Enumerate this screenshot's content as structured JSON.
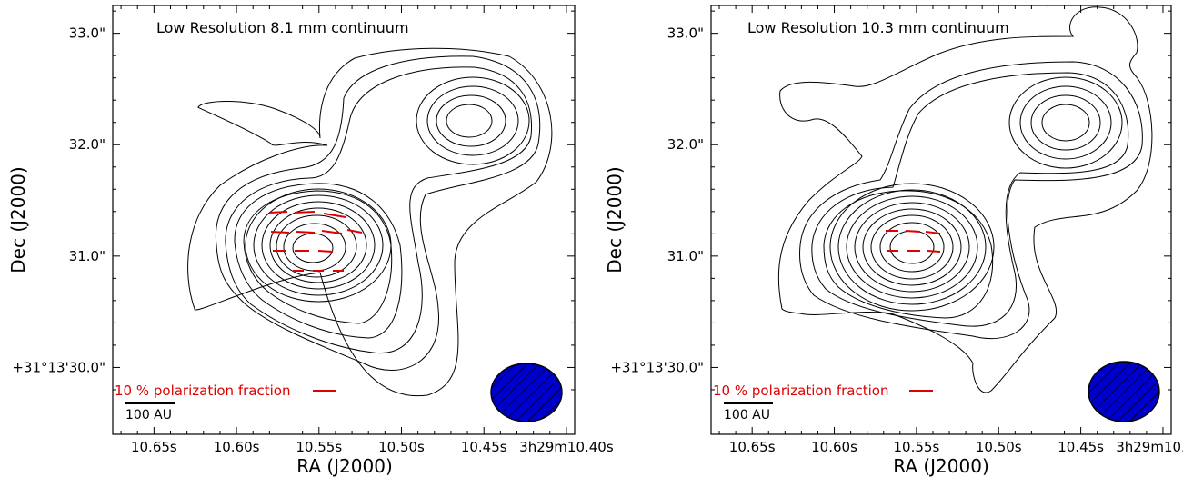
{
  "chart_data": [
    {
      "type": "contour",
      "title": "Low Resolution 8.1 mm continuum",
      "xlabel": "RA (J2000)",
      "ylabel": "Dec (J2000)",
      "x_ticks": [
        "10.65s",
        "10.60s",
        "10.55s",
        "10.50s",
        "10.45s",
        "3h29m10.40s"
      ],
      "x_tick_values_s": [
        10.65,
        10.6,
        10.55,
        10.5,
        10.45,
        10.4
      ],
      "y_ticks": [
        "33.0\"",
        "32.0\"",
        "31.0\"",
        "+31°13'30.0\""
      ],
      "y_tick_values_arcsec": [
        33.0,
        32.0,
        31.0,
        30.0
      ],
      "xlim_s": [
        10.675,
        10.395
      ],
      "ylim_arcsec": [
        29.4,
        33.25
      ],
      "polarization_note": "10 % polarization fraction",
      "scale_bar_label": "100 AU",
      "beam_color": "#0000cc",
      "vector_color": "#e00000",
      "peaks": [
        {
          "ra_s": 10.535,
          "dec_arcsec": 30.95
        },
        {
          "ra_s": 10.425,
          "dec_arcsec": 32.15
        }
      ]
    },
    {
      "type": "contour",
      "title": "Low Resolution 10.3 mm continuum",
      "xlabel": "RA (J2000)",
      "ylabel": "Dec (J2000)",
      "x_ticks": [
        "10.65s",
        "10.60s",
        "10.55s",
        "10.50s",
        "10.45s",
        "3h29m10.40s"
      ],
      "x_tick_values_s": [
        10.65,
        10.6,
        10.55,
        10.5,
        10.45,
        10.4
      ],
      "y_ticks": [
        "33.0\"",
        "32.0\"",
        "31.0\"",
        "+31°13'30.0\""
      ],
      "y_tick_values_arcsec": [
        33.0,
        32.0,
        31.0,
        30.0
      ],
      "xlim_s": [
        10.675,
        10.395
      ],
      "ylim_arcsec": [
        29.4,
        33.25
      ],
      "polarization_note": "10 % polarization fraction",
      "scale_bar_label": "100 AU",
      "beam_color": "#0000cc",
      "vector_color": "#e00000",
      "peaks": [
        {
          "ra_s": 10.537,
          "dec_arcsec": 30.95
        },
        {
          "ra_s": 10.423,
          "dec_arcsec": 32.15
        }
      ]
    }
  ]
}
